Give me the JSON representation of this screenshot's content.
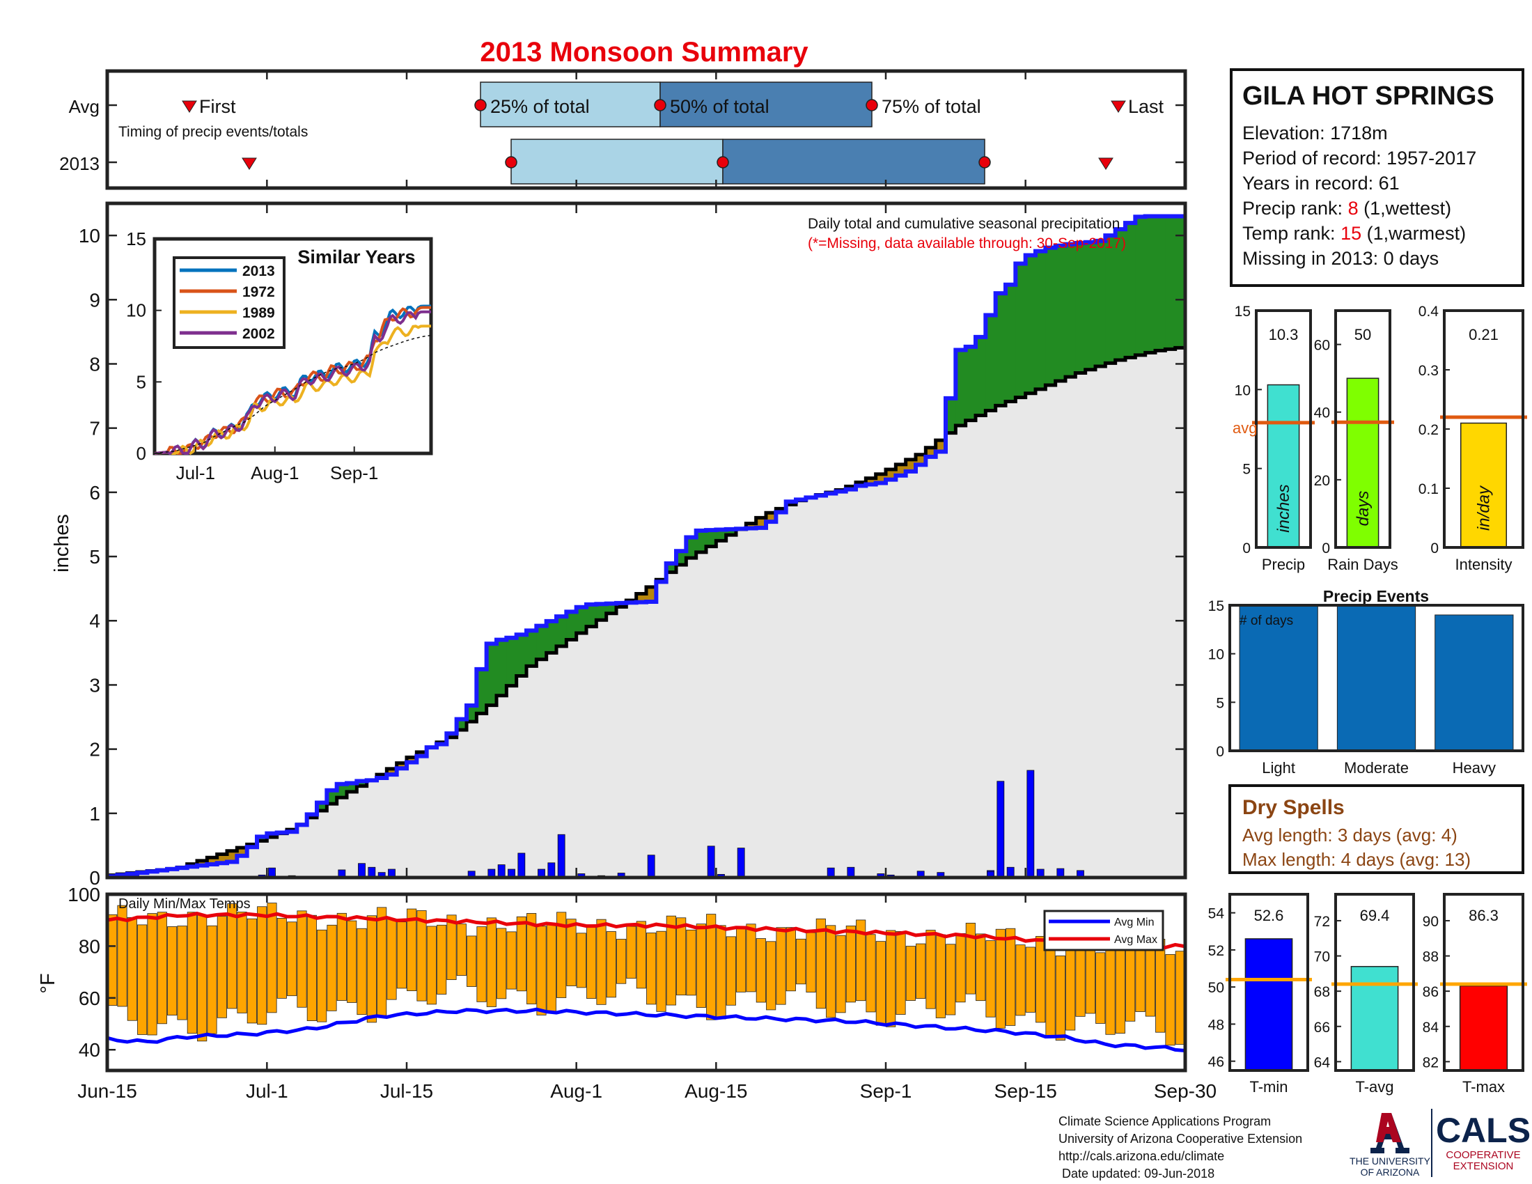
{
  "title": "2013 Monsoon Summary",
  "timing": {
    "row_labels": [
      "Avg",
      "2013"
    ],
    "first_label": "First",
    "last_label": "Last",
    "caption": "Timing of precip events/totals",
    "pct25_label": "25% of total",
    "pct50_label": "50% of total",
    "pct75_label": "75% of total",
    "avg": {
      "first": "Jun-21",
      "p25": "Jul-21",
      "p50": "Aug-7",
      "p75": "Aug-26",
      "last": "Sep-26"
    },
    "y2013": {
      "first": "Jun-27",
      "p25": "Jul-24",
      "p50": "Aug-15",
      "p75": "Sep-8",
      "last": "Sep-25"
    }
  },
  "station": {
    "name": "GILA HOT SPRINGS",
    "elevation": "Elevation: 1718m",
    "period": "Period of record: 1957-2017",
    "years": "Years in record: 61",
    "precip_rank_prefix": "Precip rank: ",
    "precip_rank_value": "8",
    "precip_rank_suffix": " (1,wettest)",
    "temp_rank_prefix": "Temp rank: ",
    "temp_rank_value": "15",
    "temp_rank_suffix": " (1,warmest)",
    "missing": "Missing in 2013: 0 days"
  },
  "main": {
    "note1": "Daily total and cumulative seasonal precipitation",
    "note2": "(*=Missing, data available through: 30-Sep-2017)",
    "ylabel": "inches",
    "temp_title": "Daily Min/Max Temps",
    "temp_ylabel": "°F",
    "legend_min": "Avg Min",
    "legend_max": "Avg Max",
    "xticks": [
      "Jun-15",
      "Jul-1",
      "Jul-15",
      "Aug-1",
      "Aug-15",
      "Sep-1",
      "Sep-15",
      "Sep-30"
    ]
  },
  "chart_data": [
    {
      "type": "area",
      "name": "cumulative_precip",
      "ylabel": "inches",
      "ylim": [
        0,
        10.5
      ],
      "xlim": [
        "Jun-15",
        "Sep-30"
      ],
      "cumulative_2013_knots": [
        [
          0,
          0
        ],
        [
          17,
          0.25
        ],
        [
          19,
          0.45
        ],
        [
          20,
          0.6
        ],
        [
          21,
          0.68
        ],
        [
          25,
          0.72
        ],
        [
          26,
          0.9
        ],
        [
          27,
          1.0
        ],
        [
          28,
          1.15
        ],
        [
          29,
          1.3
        ],
        [
          30,
          1.45
        ],
        [
          32,
          1.47
        ],
        [
          33,
          1.5
        ],
        [
          35,
          1.52
        ],
        [
          37,
          1.6
        ],
        [
          39,
          1.75
        ],
        [
          41,
          1.9
        ],
        [
          42,
          2.02
        ],
        [
          44,
          2.1
        ],
        [
          45,
          2.3
        ],
        [
          48,
          2.8
        ],
        [
          49,
          3.6
        ],
        [
          51,
          3.7
        ],
        [
          53,
          3.75
        ],
        [
          55,
          3.85
        ],
        [
          62,
          4.25
        ],
        [
          71,
          4.3
        ],
        [
          72,
          4.85
        ],
        [
          73,
          4.9
        ],
        [
          76,
          5.4
        ],
        [
          85,
          5.45
        ],
        [
          86,
          5.6
        ],
        [
          87,
          5.7
        ],
        [
          88,
          5.85
        ],
        [
          92,
          5.95
        ],
        [
          96,
          6.05
        ],
        [
          97,
          6.1
        ],
        [
          100,
          6.15
        ],
        [
          102,
          6.25
        ],
        [
          104,
          6.35
        ],
        [
          106,
          6.55
        ],
        [
          107,
          6.6
        ],
        [
          108,
          6.7
        ],
        [
          109,
          7.95
        ],
        [
          110,
          8.25
        ],
        [
          111,
          8.26
        ],
        [
          112,
          8.3
        ],
        [
          115,
          9.1
        ],
        [
          116,
          9.15
        ],
        [
          117,
          9.45
        ],
        [
          118,
          9.65
        ],
        [
          119,
          9.7
        ],
        [
          120,
          9.75
        ],
        [
          121,
          9.8
        ],
        [
          123,
          9.85
        ],
        [
          125,
          9.88
        ],
        [
          127,
          9.9
        ],
        [
          128,
          9.92
        ],
        [
          133,
          10.3
        ],
        [
          136,
          10.3
        ],
        [
          138,
          10.3
        ]
      ],
      "cumulative_avg_knots": [
        [
          0,
          0.02
        ],
        [
          10,
          0.15
        ],
        [
          20,
          0.55
        ],
        [
          25,
          0.78
        ],
        [
          30,
          1.2
        ],
        [
          35,
          1.55
        ],
        [
          40,
          1.9
        ],
        [
          45,
          2.2
        ],
        [
          50,
          2.7
        ],
        [
          55,
          3.3
        ],
        [
          60,
          3.7
        ],
        [
          65,
          4.1
        ],
        [
          70,
          4.5
        ],
        [
          75,
          4.95
        ],
        [
          80,
          5.3
        ],
        [
          85,
          5.65
        ],
        [
          90,
          5.9
        ],
        [
          95,
          6.05
        ],
        [
          100,
          6.3
        ],
        [
          105,
          6.6
        ],
        [
          110,
          7.05
        ],
        [
          115,
          7.35
        ],
        [
          120,
          7.6
        ],
        [
          125,
          7.85
        ],
        [
          130,
          8.05
        ],
        [
          135,
          8.2
        ],
        [
          138,
          8.25
        ]
      ],
      "daily_precip": [
        [
          19,
          0.04
        ],
        [
          20,
          0.06
        ],
        [
          21,
          0.15
        ],
        [
          23,
          0.03
        ],
        [
          30,
          0.12
        ],
        [
          32,
          0.22
        ],
        [
          33,
          0.16
        ],
        [
          34,
          0.08
        ],
        [
          36,
          0.13
        ],
        [
          40,
          0.01
        ],
        [
          41,
          0.02
        ],
        [
          43,
          0.02
        ],
        [
          46,
          0.1
        ],
        [
          48,
          0.13
        ],
        [
          50,
          0.2
        ],
        [
          51,
          0.13
        ],
        [
          53,
          0.38
        ],
        [
          55,
          0.13
        ],
        [
          56,
          0.23
        ],
        [
          58,
          0.67
        ],
        [
          60,
          0.06
        ],
        [
          62,
          0.03
        ],
        [
          65,
          0.07
        ],
        [
          69,
          0.35
        ],
        [
          77,
          0.49
        ],
        [
          78,
          0.05
        ],
        [
          81,
          0.46
        ],
        [
          92,
          0.15
        ],
        [
          94,
          0.16
        ],
        [
          99,
          0.06
        ],
        [
          100,
          0.04
        ],
        [
          104,
          0.1
        ],
        [
          106,
          0.08
        ],
        [
          112,
          0.11
        ],
        [
          113,
          0.09
        ],
        [
          114,
          1.5
        ],
        [
          115,
          0.16
        ],
        [
          116,
          0.01
        ],
        [
          117,
          1.67
        ],
        [
          118,
          0.01
        ],
        [
          119,
          0.13
        ],
        [
          121,
          0.14
        ],
        [
          124,
          0.11
        ]
      ]
    },
    {
      "type": "line",
      "name": "similar_years",
      "title": "Similar Years",
      "ylim": [
        0,
        15
      ],
      "xticks": [
        "Jul-1",
        "Aug-1",
        "Sep-1"
      ],
      "series": [
        {
          "name": "2013",
          "color": "#0072bd",
          "final": 10.3
        },
        {
          "name": "1972",
          "color": "#d95319",
          "final": 10.2
        },
        {
          "name": "1989",
          "color": "#edb120",
          "final": 8.9
        },
        {
          "name": "2002",
          "color": "#7e2f8e",
          "final": 9.9
        }
      ]
    },
    {
      "type": "bar",
      "name": "daily_temps",
      "ylabel": "°F",
      "ylim": [
        32,
        100
      ],
      "avg_max_knots": [
        [
          0,
          90
        ],
        [
          10,
          92
        ],
        [
          20,
          92
        ],
        [
          30,
          91
        ],
        [
          40,
          90
        ],
        [
          50,
          89
        ],
        [
          60,
          88
        ],
        [
          70,
          88
        ],
        [
          80,
          87
        ],
        [
          90,
          86
        ],
        [
          100,
          85
        ],
        [
          110,
          84
        ],
        [
          120,
          82
        ],
        [
          130,
          80
        ],
        [
          138,
          80
        ]
      ],
      "avg_min_knots": [
        [
          0,
          44
        ],
        [
          5,
          43
        ],
        [
          10,
          45
        ],
        [
          18,
          46
        ],
        [
          26,
          48
        ],
        [
          35,
          53
        ],
        [
          45,
          55
        ],
        [
          55,
          55
        ],
        [
          65,
          54
        ],
        [
          75,
          53
        ],
        [
          85,
          52
        ],
        [
          95,
          51
        ],
        [
          105,
          49
        ],
        [
          115,
          47
        ],
        [
          122,
          45
        ],
        [
          128,
          42
        ],
        [
          134,
          41
        ],
        [
          138,
          40
        ]
      ]
    },
    {
      "type": "bar",
      "name": "season_totals",
      "categories": [
        "Precip",
        "Rain Days",
        "Intensity"
      ],
      "values": [
        10.3,
        50,
        0.21
      ],
      "avg": [
        7.9,
        37,
        0.22
      ],
      "value_labels": [
        "10.3",
        "50",
        "0.21"
      ],
      "unit_labels": [
        "inches",
        "days",
        "in/day"
      ],
      "avg_label": "avg",
      "ylims": [
        [
          0,
          15
        ],
        [
          0,
          70
        ],
        [
          0,
          0.4
        ]
      ]
    },
    {
      "type": "bar",
      "name": "precip_events",
      "title": "Precip Events",
      "ylabel": "# of days",
      "categories": [
        "Light",
        "Moderate",
        "Heavy"
      ],
      "values": [
        15,
        15,
        14
      ],
      "ylim": [
        0,
        15
      ]
    },
    {
      "type": "bar",
      "name": "temp_averages",
      "categories": [
        "T-min",
        "T-avg",
        "T-max"
      ],
      "values": [
        52.6,
        69.4,
        86.3
      ],
      "value_labels": [
        "52.6",
        "69.4",
        "86.3"
      ],
      "avg": [
        50.4,
        68.4,
        86.4
      ],
      "ylims": [
        [
          45.5,
          55
        ],
        [
          63.5,
          73.5
        ],
        [
          81.5,
          91.5
        ]
      ]
    }
  ],
  "dry_spells": {
    "title": "Dry Spells",
    "avg": "Avg length: 3 days (avg: 4)",
    "max": "Max length: 4 days (avg: 13)"
  },
  "footer": {
    "line1": "Climate Science Applications Program",
    "line2": "University of Arizona Cooperative Extension",
    "line3": "http://cals.arizona.edu/climate",
    "line4": " Date updated: 09-Jun-2018"
  },
  "logos": {
    "ua1": "THE UNIVERSITY",
    "ua2": "OF ARIZONA",
    "cals": "CALS",
    "cals1": "COOPERATIVE",
    "cals2": "EXTENSION"
  },
  "colors": {
    "accent_red": "#e8000b",
    "light_blue": "#aad4e6",
    "steel_blue": "#4a7fb1",
    "green_fill": "#228b22",
    "brown_fill": "#b8860b",
    "gray_fill": "#e8e8e8",
    "bar_blue": "#0000ff",
    "temp_orange": "#ffa500",
    "events_blue": "#0a6ab4",
    "dry_brown": "#8b4513"
  }
}
